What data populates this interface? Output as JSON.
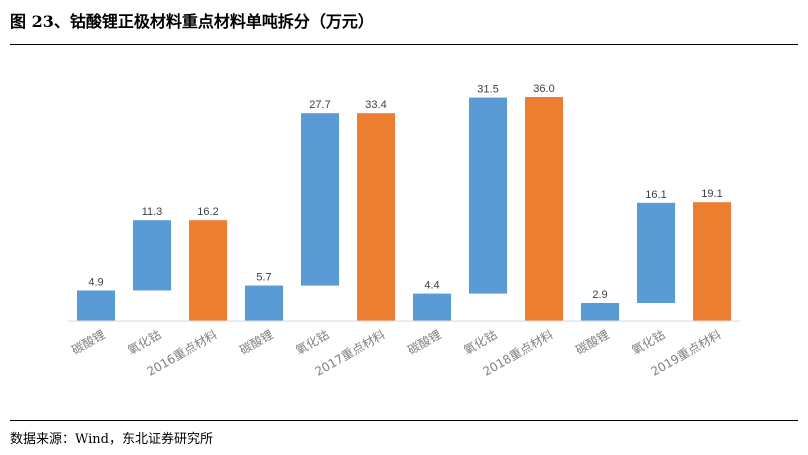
{
  "header": {
    "title": "图 23、钴酸锂正极材料重点材料单吨拆分（万元）"
  },
  "footer": {
    "source": "数据来源：Wind，东北证券研究所"
  },
  "colors": {
    "blue": "#5b9bd5",
    "orange": "#ed7d31",
    "axis": "#d9d9d9"
  },
  "chart_data": {
    "type": "bar",
    "subtype": "waterfall",
    "categories": [
      "碳酸锂",
      "氧化钴",
      "2016重点材料",
      "碳酸锂",
      "氧化钴",
      "2017重点材料",
      "碳酸锂",
      "氧化钴",
      "2018重点材料",
      "碳酸锂",
      "氧化钴",
      "2019重点材料"
    ],
    "values": [
      4.9,
      11.3,
      16.2,
      5.7,
      27.7,
      33.4,
      4.4,
      31.5,
      36.0,
      2.9,
      16.1,
      19.1
    ],
    "kinds": [
      "component",
      "component",
      "total",
      "component",
      "component",
      "total",
      "component",
      "component",
      "total",
      "component",
      "component",
      "total"
    ],
    "bar_bottoms": [
      0,
      4.9,
      0,
      0,
      5.7,
      0,
      0,
      4.4,
      0,
      0,
      2.9,
      0
    ],
    "value_labels": [
      "4.9",
      "11.3",
      "16.2",
      "5.7",
      "27.7",
      "33.4",
      "4.4",
      "31.5",
      "36.0",
      "2.9",
      "16.1",
      "19.1"
    ],
    "ylim": [
      0,
      36.0
    ],
    "grid": false,
    "legend": "none",
    "xlabel": "",
    "ylabel": ""
  }
}
